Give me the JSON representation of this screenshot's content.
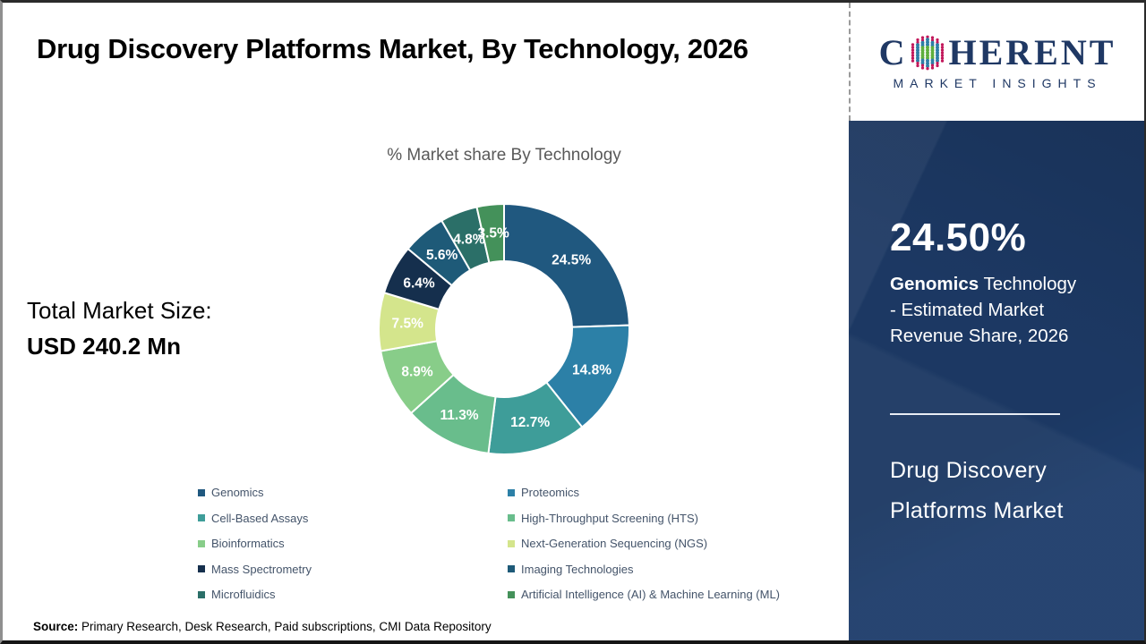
{
  "page": {
    "title": "Drug Discovery Platforms Market, By Technology, 2026",
    "source_label": "Source:",
    "source_text": " Primary Research, Desk Research, Paid subscriptions, CMI Data Repository"
  },
  "logo": {
    "brand_prefix": "C",
    "brand_suffix": "HERENT",
    "subtitle": "MARKET INSIGHTS",
    "brand_color": "#1F3864",
    "globe_dot_colors": {
      "core": "#5FAF3C",
      "mid": "#2E7EA6",
      "outer": "#C2185B"
    }
  },
  "left_panel": {
    "market_size_label": "Total Market Size:",
    "market_size_value": "USD 240.2 Mn"
  },
  "sidebar": {
    "background_color": "#1E3D6B",
    "highlight_value": "24.50%",
    "highlight_bold": "Genomics",
    "highlight_rest": " Technology - Estimated Market Revenue Share, 2026",
    "market_name_line1": "Drug Discovery",
    "market_name_line2": "Platforms Market"
  },
  "chart_data": {
    "type": "pie",
    "donut": true,
    "title": "% Market share By Technology",
    "start_angle_deg": 0,
    "direction": "clockwise",
    "categories": [
      "Genomics",
      "Proteomics",
      "Cell-Based Assays",
      "High-Throughput Screening (HTS)",
      "Bioinformatics",
      "Next-Generation Sequencing (NGS)",
      "Mass Spectrometry",
      "Imaging Technologies",
      "Microfluidics",
      "Artificial Intelligence (AI) & Machine Learning (ML)"
    ],
    "values": [
      24.5,
      14.8,
      12.7,
      11.3,
      8.9,
      7.5,
      6.4,
      5.6,
      4.8,
      3.5
    ],
    "labels": [
      "24.5%",
      "14.8%",
      "12.7%",
      "11.3%",
      "8.9%",
      "7.5%",
      "6.4%",
      "5.6%",
      "4.8%",
      "3.5%"
    ],
    "colors": [
      "#20587F",
      "#2C80A7",
      "#3E9D99",
      "#69BD8C",
      "#88CD89",
      "#D4E58C",
      "#152F4D",
      "#1E5A78",
      "#2B6F68",
      "#44915A"
    ],
    "legend_position": "bottom",
    "legend_columns": 2,
    "slice_border_color": "#ffffff"
  }
}
